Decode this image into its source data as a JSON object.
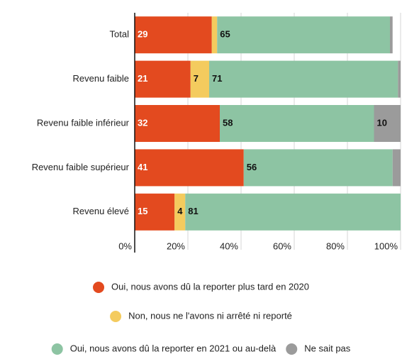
{
  "chart_data": {
    "type": "stacked_bar_horizontal",
    "categories": [
      "Total",
      "Revenu faible",
      "Revenu faible inférieur",
      "Revenu faible supérieur",
      "Revenu élevé"
    ],
    "series": [
      {
        "name": "Oui, nous avons dû la reporter plus tard en 2020",
        "color": "#e34a1f",
        "label_color": "#ffffff",
        "values": [
          29,
          21,
          32,
          41,
          15
        ]
      },
      {
        "name": "Non, nous ne l'avons ni arrêté ni reporté",
        "color": "#f4cb5e",
        "label_color": "#111111",
        "values": [
          2,
          7,
          0,
          0,
          4
        ]
      },
      {
        "name": "Oui, nous avons dû la reporter en 2021 ou au-delà",
        "color": "#8dc4a3",
        "label_color": "#111111",
        "values": [
          65,
          71,
          58,
          56,
          81
        ]
      },
      {
        "name": "Ne sait pas",
        "color": "#9b9b9b",
        "label_color": "#111111",
        "values": [
          1,
          1,
          10,
          3,
          0
        ]
      }
    ],
    "xlim": [
      0,
      100
    ],
    "xticks": [
      {
        "value": 0,
        "label": "0%"
      },
      {
        "value": 20,
        "label": "20%"
      },
      {
        "value": 40,
        "label": "40%"
      },
      {
        "value": 60,
        "label": "60%"
      },
      {
        "value": 80,
        "label": "80%"
      },
      {
        "value": 100,
        "label": "100%"
      }
    ],
    "grid": true
  }
}
